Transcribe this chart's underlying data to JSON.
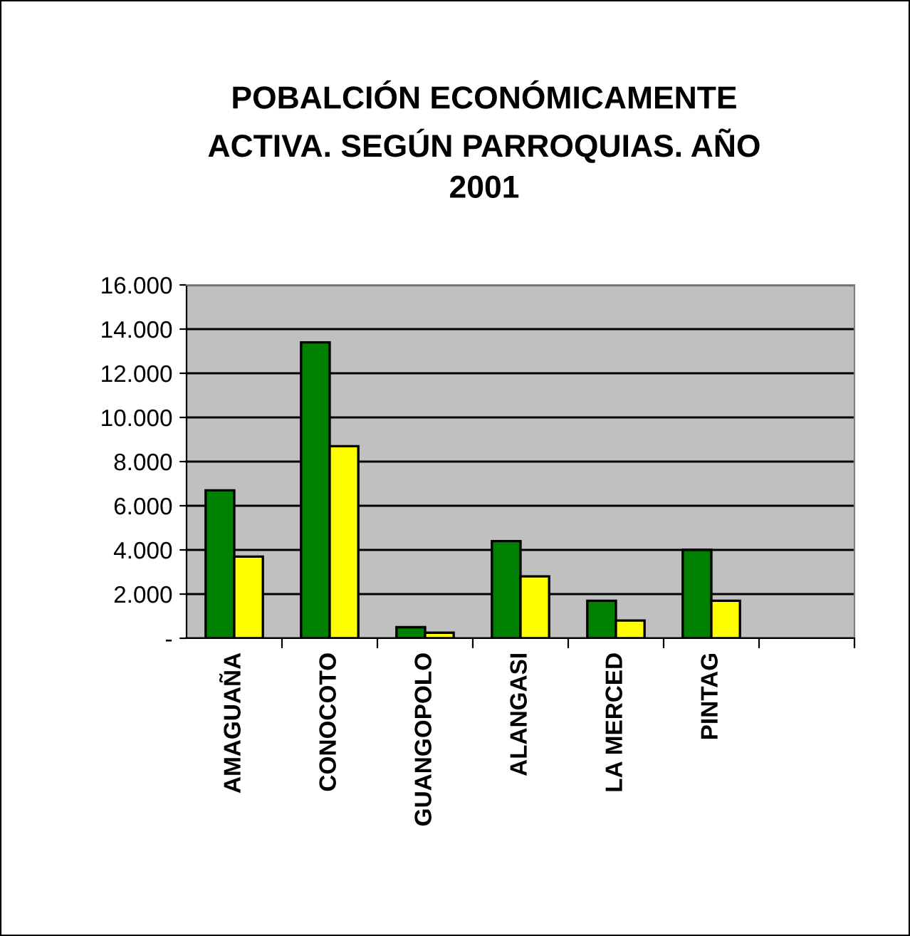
{
  "chart_data": {
    "type": "bar",
    "title": "POBALCIÓN ECONÓMICAMENTE\nACTIVA. SEGÚN PARROQUIAS. AÑO\n2001",
    "categories": [
      "AMAGUAÑA",
      "CONOCOTO",
      "GUANGOPOLO",
      "ALANGASI",
      "LA MERCED",
      "PINTAG",
      null
    ],
    "series": [
      {
        "color": "#008000",
        "values": [
          6700,
          13400,
          500,
          4400,
          1700,
          4000,
          null
        ]
      },
      {
        "color": "#ffff00",
        "values": [
          3700,
          8700,
          250,
          2800,
          800,
          1700,
          null
        ]
      }
    ],
    "ylim": [
      0,
      16000
    ],
    "yticks": [
      {
        "value": 0,
        "label": "-"
      },
      {
        "value": 2000,
        "label": "2.000"
      },
      {
        "value": 4000,
        "label": "4.000"
      },
      {
        "value": 6000,
        "label": "6.000"
      },
      {
        "value": 8000,
        "label": "8.000"
      },
      {
        "value": 10000,
        "label": "10.000"
      },
      {
        "value": 12000,
        "label": "12.000"
      },
      {
        "value": 14000,
        "label": "14.000"
      },
      {
        "value": 16000,
        "label": "16.000"
      }
    ],
    "grid": "y"
  }
}
